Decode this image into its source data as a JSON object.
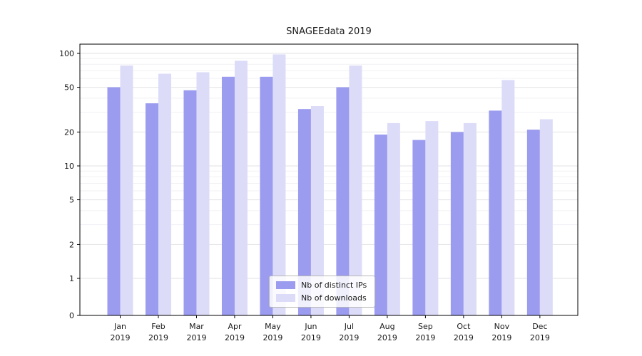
{
  "chart_data": {
    "type": "bar",
    "title": "SNAGEEdata 2019",
    "categories": [
      "Jan",
      "Feb",
      "Mar",
      "Apr",
      "May",
      "Jun",
      "Jul",
      "Aug",
      "Sep",
      "Oct",
      "Nov",
      "Dec"
    ],
    "year_label": "2019",
    "yscale": "symlog",
    "yticks": [
      0,
      1,
      2,
      5,
      10,
      20,
      50,
      100
    ],
    "y_minor_ticks": [
      3,
      4,
      6,
      7,
      8,
      9,
      30,
      40,
      60,
      70,
      80,
      90
    ],
    "ylim": [
      0,
      120
    ],
    "grid": true,
    "legend_position": "lower center",
    "series": [
      {
        "name": "Nb of distinct IPs",
        "color": "#9b9bef",
        "values": [
          50,
          36,
          47,
          62,
          62,
          32,
          50,
          19,
          17,
          20,
          31,
          21
        ]
      },
      {
        "name": "Nb of downloads",
        "color": "#dcdcf9",
        "values": [
          78,
          66,
          68,
          86,
          98,
          34,
          78,
          24,
          25,
          24,
          58,
          26
        ]
      }
    ]
  }
}
